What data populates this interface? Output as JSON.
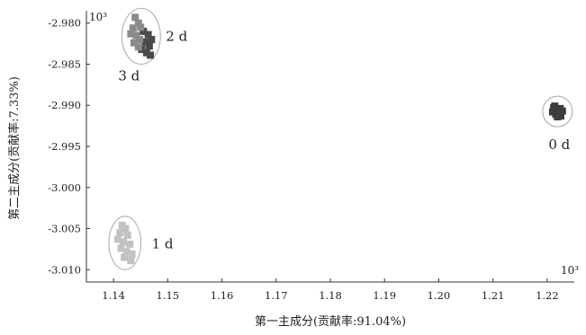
{
  "chart_data": {
    "type": "scatter",
    "xlabel": "第一主成分(贡献率:91.04%)",
    "ylabel": "第二主成分(贡献率:7.33%)",
    "xlim": [
      1.135,
      1.225
    ],
    "ylim": [
      -3.0115,
      -2.9785
    ],
    "x_ticks": [
      1.14,
      1.15,
      1.16,
      1.17,
      1.18,
      1.19,
      1.2,
      1.21,
      1.22
    ],
    "x_tick_labels": [
      "1.14",
      "1.15",
      "1.16",
      "1.17",
      "1.18",
      "1.19",
      "1.20",
      "1.21",
      "1.22"
    ],
    "y_ticks": [
      -2.98,
      -2.985,
      -2.99,
      -2.995,
      -3.0,
      -3.005,
      -3.01
    ],
    "y_tick_labels": [
      "-2.980",
      "-2.985",
      "-2.990",
      "-2.995",
      "-3.000",
      "-3.005",
      "-3.010"
    ],
    "y_exponent_label": "10³",
    "x_exponent_label": "10³",
    "grid": false,
    "series": [
      {
        "name": "0 d",
        "color": "#3d3d3d",
        "points": [
          {
            "x": 1.2212,
            "y": -2.9903
          },
          {
            "x": 1.2218,
            "y": -2.9906
          },
          {
            "x": 1.2224,
            "y": -2.9904
          },
          {
            "x": 1.221,
            "y": -2.9908
          },
          {
            "x": 1.2216,
            "y": -2.9911
          },
          {
            "x": 1.2222,
            "y": -2.991
          },
          {
            "x": 1.2228,
            "y": -2.9907
          },
          {
            "x": 1.2219,
            "y": -2.9914
          },
          {
            "x": 1.2225,
            "y": -2.9913
          },
          {
            "x": 1.2214,
            "y": -2.9901
          }
        ]
      },
      {
        "name": "1 d",
        "color": "#c2c2c2",
        "points": [
          {
            "x": 1.1416,
            "y": -3.0046
          },
          {
            "x": 1.1422,
            "y": -3.005
          },
          {
            "x": 1.1412,
            "y": -3.0055
          },
          {
            "x": 1.1426,
            "y": -3.0058
          },
          {
            "x": 1.1408,
            "y": -3.0063
          },
          {
            "x": 1.1418,
            "y": -3.0066
          },
          {
            "x": 1.143,
            "y": -3.0069
          },
          {
            "x": 1.1414,
            "y": -3.0074
          },
          {
            "x": 1.1424,
            "y": -3.0078
          },
          {
            "x": 1.1434,
            "y": -3.0081
          },
          {
            "x": 1.142,
            "y": -3.0085
          },
          {
            "x": 1.1432,
            "y": -3.0089
          }
        ]
      },
      {
        "name": "2 d",
        "color": "#4a4a4a",
        "points": [
          {
            "x": 1.1455,
            "y": -2.981
          },
          {
            "x": 1.1464,
            "y": -2.9814
          },
          {
            "x": 1.147,
            "y": -2.982
          },
          {
            "x": 1.1458,
            "y": -2.9823
          },
          {
            "x": 1.1466,
            "y": -2.9828
          },
          {
            "x": 1.1452,
            "y": -2.9832
          },
          {
            "x": 1.1461,
            "y": -2.9836
          },
          {
            "x": 1.1468,
            "y": -2.9839
          }
        ]
      },
      {
        "name": "3 d",
        "color": "#8a8a8a",
        "points": [
          {
            "x": 1.144,
            "y": -2.9793
          },
          {
            "x": 1.1446,
            "y": -2.98
          },
          {
            "x": 1.1436,
            "y": -2.9806
          },
          {
            "x": 1.145,
            "y": -2.9805
          },
          {
            "x": 1.1432,
            "y": -2.9813
          },
          {
            "x": 1.1442,
            "y": -2.9815
          },
          {
            "x": 1.1448,
            "y": -2.982
          },
          {
            "x": 1.1438,
            "y": -2.9824
          },
          {
            "x": 1.1446,
            "y": -2.9829
          }
        ]
      }
    ]
  }
}
